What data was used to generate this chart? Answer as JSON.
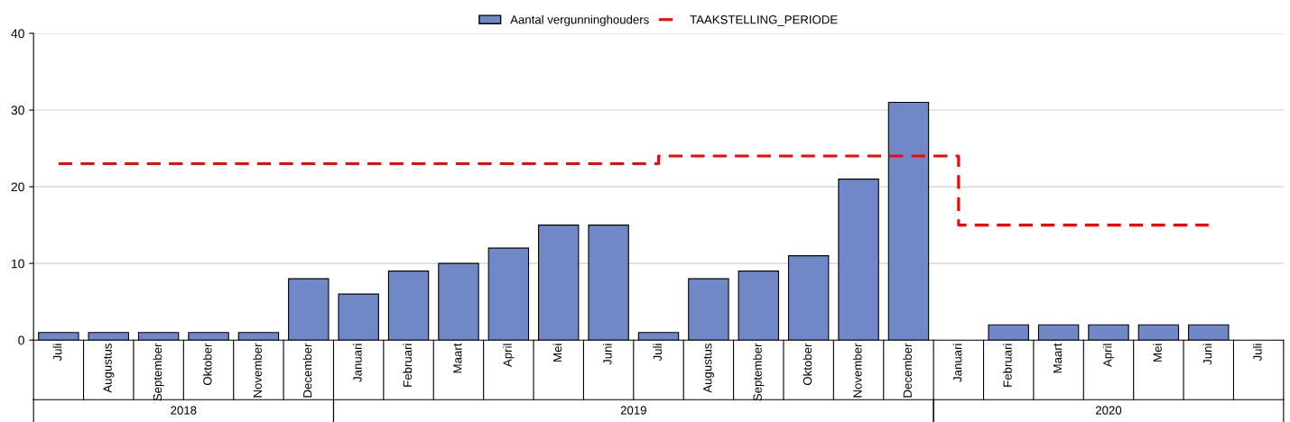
{
  "chart_data": {
    "type": "bar",
    "categories": [
      "Juli",
      "Augustus",
      "September",
      "Oktober",
      "November",
      "December",
      "Januari",
      "Februari",
      "Maart",
      "April",
      "Mei",
      "Juni",
      "Juli",
      "Augustus",
      "September",
      "Oktober",
      "November",
      "December",
      "Januari",
      "Februari",
      "Maart",
      "April",
      "Mei",
      "Juni",
      "Juli"
    ],
    "series": [
      {
        "name": "Aantal vergunninghouders",
        "color": "#7088c8",
        "values": [
          1,
          1,
          1,
          1,
          1,
          8,
          6,
          9,
          10,
          12,
          15,
          15,
          1,
          8,
          9,
          11,
          21,
          31,
          null,
          2,
          2,
          2,
          2,
          2,
          null
        ]
      },
      {
        "name": "TAAKSTELLING_PERIODE",
        "type": "step",
        "color": "#ff0000",
        "line_style": "dashed",
        "values": [
          23,
          23,
          23,
          23,
          23,
          23,
          23,
          23,
          23,
          23,
          23,
          23,
          24,
          24,
          24,
          24,
          24,
          24,
          15,
          15,
          15,
          15,
          15,
          15,
          null
        ]
      }
    ],
    "annotations": [
      "2018",
      "2019",
      "2020"
    ],
    "ylim": [
      0,
      40
    ],
    "yticks": [
      0,
      10,
      20,
      30,
      40
    ],
    "grid": "y",
    "legend": "top"
  }
}
